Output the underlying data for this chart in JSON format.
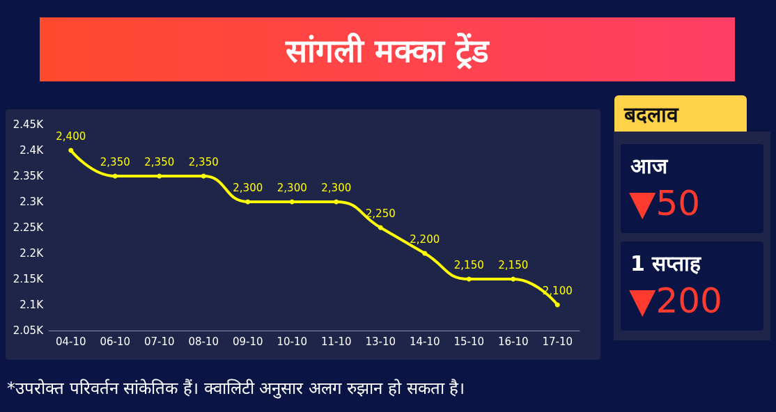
{
  "chart_data": {
    "type": "line",
    "title": "सांगली मक्का ट्रेंड",
    "categories": [
      "04-10",
      "06-10",
      "07-10",
      "08-10",
      "09-10",
      "10-10",
      "11-10",
      "13-10",
      "14-10",
      "15-10",
      "16-10",
      "17-10"
    ],
    "series": [
      {
        "color": "#ffff00",
        "values": [
          2400,
          2350,
          2350,
          2350,
          2300,
          2300,
          2300,
          2250,
          2200,
          2150,
          2150,
          2100
        ],
        "value_labels": [
          "2,400",
          "2,350",
          "2,350",
          "2,350",
          "2,300",
          "2,300",
          "2,300",
          "2,250",
          "2,200",
          "2,150",
          "2,150",
          "2,100"
        ]
      }
    ],
    "ylim": [
      2050,
      2450
    ],
    "yticks": [
      {
        "value": 2050,
        "label": "2.05K"
      },
      {
        "value": 2100,
        "label": "2.1K"
      },
      {
        "value": 2150,
        "label": "2.15K"
      },
      {
        "value": 2200,
        "label": "2.2K"
      },
      {
        "value": 2250,
        "label": "2.25K"
      },
      {
        "value": 2300,
        "label": "2.3K"
      },
      {
        "value": 2350,
        "label": "2.35K"
      },
      {
        "value": 2400,
        "label": "2.4K"
      },
      {
        "value": 2450,
        "label": "2.45K"
      }
    ],
    "grid": false,
    "marker": "circle",
    "line_style": "solid",
    "annotations": [
      "बदलाव",
      "आज",
      "▼50",
      "1 सप्ताह",
      "▼200",
      "*उपरोक्त परिवर्तन सांकेतिक हैं। क्वालिटी अनुसार अलग रुझान हो सकता है।"
    ]
  }
}
